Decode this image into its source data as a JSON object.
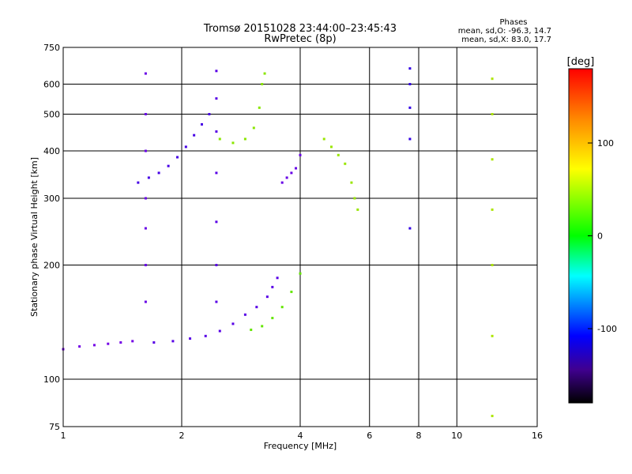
{
  "chart_data": {
    "type": "scatter",
    "title": "Tromsø 20151028 23:44:00–23:45:43",
    "subtitle": "RwPretec (8p)",
    "xlabel": "Frequency [MHz]",
    "ylabel": "Stationary phase Virtual Height [km]",
    "xscale": "log2",
    "yscale": "log",
    "xlim": [
      1,
      16
    ],
    "ylim": [
      75,
      750
    ],
    "xticks": [
      1,
      2,
      4,
      6,
      8,
      10,
      16
    ],
    "yticks": [
      75,
      100,
      200,
      300,
      400,
      500,
      600,
      750
    ],
    "grid": true,
    "phase_box": {
      "title": "Phases",
      "line_o": "mean, sd,O: -96.3, 14.7",
      "line_x": "mean, sd,X:  83.0, 17.7"
    },
    "colorbar": {
      "label": "[deg]",
      "ticks": [
        100,
        0,
        -100
      ],
      "range": [
        -180,
        180
      ],
      "colors_top_to_bottom": [
        "#ff0000",
        "#ff8800",
        "#ffff00",
        "#00ff00",
        "#00ffff",
        "#0000ff",
        "#000000"
      ]
    },
    "traces": [
      {
        "name": "",
        "phase": -95,
        "points": [
          [
            1.55,
            330
          ],
          [
            1.65,
            340
          ],
          [
            1.75,
            350
          ],
          [
            1.85,
            365
          ],
          [
            1.95,
            385
          ],
          [
            2.05,
            410
          ],
          [
            2.15,
            440
          ],
          [
            2.25,
            470
          ],
          [
            2.35,
            500
          ]
        ]
      },
      {
        "name": "",
        "phase": -100,
        "points": [
          [
            1.7,
            125
          ],
          [
            1.9,
            126
          ],
          [
            2.1,
            128
          ],
          [
            2.3,
            130
          ],
          [
            2.5,
            134
          ],
          [
            2.7,
            140
          ],
          [
            2.9,
            148
          ],
          [
            3.1,
            155
          ],
          [
            3.3,
            165
          ],
          [
            3.4,
            175
          ],
          [
            3.5,
            185
          ]
        ]
      },
      {
        "name": "",
        "phase": 90,
        "points": [
          [
            2.5,
            430
          ],
          [
            2.7,
            420
          ],
          [
            2.9,
            430
          ],
          [
            3.05,
            460
          ],
          [
            3.15,
            520
          ],
          [
            3.2,
            600
          ],
          [
            3.25,
            640
          ]
        ]
      },
      {
        "name": "",
        "phase": 80,
        "points": [
          [
            3.0,
            135
          ],
          [
            3.2,
            138
          ],
          [
            3.4,
            145
          ],
          [
            3.6,
            155
          ],
          [
            3.8,
            170
          ],
          [
            4.0,
            190
          ]
        ]
      },
      {
        "name": "",
        "phase": 95,
        "points": [
          [
            4.6,
            430
          ],
          [
            4.8,
            410
          ],
          [
            5.0,
            390
          ],
          [
            5.2,
            370
          ],
          [
            5.4,
            330
          ],
          [
            5.5,
            300
          ],
          [
            5.6,
            280
          ]
        ]
      },
      {
        "name": "",
        "phase": -110,
        "points": [
          [
            1.0,
            120
          ],
          [
            1.1,
            122
          ],
          [
            1.2,
            123
          ],
          [
            1.3,
            124
          ],
          [
            1.4,
            125
          ],
          [
            1.5,
            126
          ]
        ]
      },
      {
        "name": "",
        "phase": -105,
        "points": [
          [
            1.62,
            160
          ],
          [
            1.62,
            200
          ],
          [
            1.62,
            250
          ],
          [
            1.62,
            300
          ],
          [
            1.62,
            400
          ],
          [
            1.62,
            500
          ],
          [
            1.62,
            640
          ]
        ]
      },
      {
        "name": "",
        "phase": -100,
        "points": [
          [
            2.45,
            160
          ],
          [
            2.45,
            200
          ],
          [
            2.45,
            260
          ],
          [
            2.45,
            350
          ],
          [
            2.45,
            450
          ],
          [
            2.45,
            550
          ],
          [
            2.45,
            650
          ]
        ]
      },
      {
        "name": "",
        "phase": -105,
        "points": [
          [
            3.6,
            330
          ],
          [
            3.7,
            340
          ],
          [
            3.8,
            350
          ],
          [
            3.9,
            360
          ],
          [
            4.0,
            390
          ]
        ]
      },
      {
        "name": "",
        "phase": -90,
        "points": [
          [
            7.6,
            250
          ],
          [
            7.6,
            430
          ],
          [
            7.6,
            520
          ],
          [
            7.6,
            600
          ],
          [
            7.6,
            660
          ]
        ]
      },
      {
        "name": "",
        "phase": 100,
        "points": [
          [
            12.3,
            80
          ],
          [
            12.3,
            130
          ],
          [
            12.3,
            200
          ],
          [
            12.3,
            280
          ],
          [
            12.3,
            380
          ],
          [
            12.3,
            500
          ],
          [
            12.3,
            620
          ]
        ]
      }
    ]
  }
}
